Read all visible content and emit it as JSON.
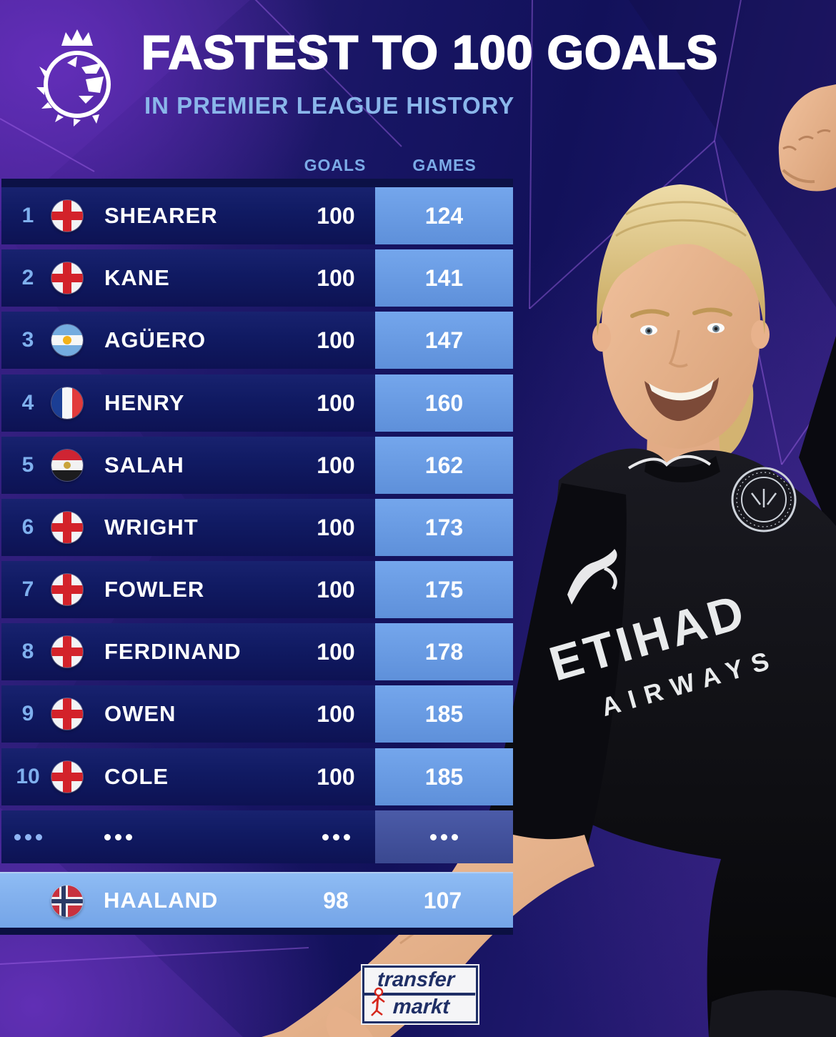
{
  "header": {
    "logo_icon": "premier-league-lion-icon",
    "title": "FASTEST TO 100 GOALS",
    "subtitle": "IN PREMIER LEAGUE HISTORY"
  },
  "table": {
    "columns": {
      "goals": "GOALS",
      "games": "GAMES"
    },
    "rows": [
      {
        "rank": "1",
        "flag": "england",
        "name": "SHEARER",
        "goals": "100",
        "games": "124"
      },
      {
        "rank": "2",
        "flag": "england",
        "name": "KANE",
        "goals": "100",
        "games": "141"
      },
      {
        "rank": "3",
        "flag": "argentina",
        "name": "AGÜERO",
        "goals": "100",
        "games": "147"
      },
      {
        "rank": "4",
        "flag": "france",
        "name": "HENRY",
        "goals": "100",
        "games": "160"
      },
      {
        "rank": "5",
        "flag": "egypt",
        "name": "SALAH",
        "goals": "100",
        "games": "162"
      },
      {
        "rank": "6",
        "flag": "england",
        "name": "WRIGHT",
        "goals": "100",
        "games": "173"
      },
      {
        "rank": "7",
        "flag": "england",
        "name": "FOWLER",
        "goals": "100",
        "games": "175"
      },
      {
        "rank": "8",
        "flag": "england",
        "name": "FERDINAND",
        "goals": "100",
        "games": "178"
      },
      {
        "rank": "9",
        "flag": "england",
        "name": "OWEN",
        "goals": "100",
        "games": "185"
      },
      {
        "rank": "10",
        "flag": "england",
        "name": "COLE",
        "goals": "100",
        "games": "185"
      },
      {
        "rank": "...",
        "flag": "",
        "name": "...",
        "goals": "...",
        "games": "..."
      }
    ],
    "highlight": {
      "rank": "",
      "flag": "norway",
      "name": "HAALAND",
      "goals": "98",
      "games": "107"
    }
  },
  "photo": {
    "subject_icon": "haaland-photo",
    "shirt_sponsor_line1": "ETIHAD",
    "shirt_sponsor_line2": "AIRWAYS",
    "badge_icon": "manchester-city-badge-icon",
    "brand_icon": "puma-logo-icon"
  },
  "footer": {
    "brand_line1": "transfer",
    "brand_line2": "markt",
    "brand_icon": "transfermarkt-runner-icon"
  },
  "flags": {
    "england": {
      "field": "#f2f3f5",
      "cross": "#d3222a"
    },
    "argentina": {
      "stripes": [
        "#74acdf",
        "#f5f7f7",
        "#74acdf"
      ],
      "sun": "#f3b21a"
    },
    "france": {
      "stripes": [
        "#1b3e94",
        "#f5f6f8",
        "#e23b3b"
      ]
    },
    "egypt": {
      "stripes": [
        "#cf2433",
        "#f2f2f2",
        "#1c1c1e"
      ],
      "emblem": "#c9a43a"
    },
    "norway": {
      "field": "#c8313e",
      "cross_outer": "#f2f3f5",
      "cross_inner": "#2b3a66"
    }
  },
  "colors": {
    "row_bg": "#111a63",
    "row_top_strip": "#0c1146",
    "games_cell": "#6aa0e6",
    "games_cell_muted": "#44549e",
    "highlight_row": "#82b2ee",
    "rank_text": "#7fb0ee",
    "header_text": "#7babe7",
    "subtitle_text": "#8ab6ea",
    "title_text": "#ffffff",
    "bg_purple": "#3c1f86",
    "bg_navy": "#12115a",
    "tm_navy": "#1f2f66",
    "tm_red": "#d6281e"
  }
}
